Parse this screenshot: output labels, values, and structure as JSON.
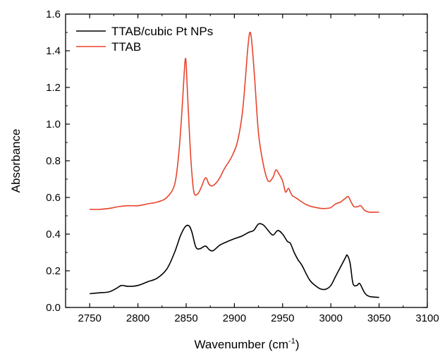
{
  "chart_data": {
    "type": "line",
    "title": "",
    "xlabel": "Wavenumber (cm",
    "xlabel_sup": "-1",
    "xlabel_close": ")",
    "ylabel": "Absorbance",
    "xlim": [
      2725,
      3100
    ],
    "ylim": [
      0.0,
      1.6
    ],
    "xticks": [
      2750,
      2800,
      2850,
      2900,
      2950,
      3000,
      3050,
      3100
    ],
    "xtick_labels": [
      "2750",
      "2800",
      "2850",
      "2900",
      "2950",
      "3000",
      "3050",
      "3100"
    ],
    "yticks": [
      0.0,
      0.2,
      0.4,
      0.6,
      0.8,
      1.0,
      1.2,
      1.4,
      1.6
    ],
    "ytick_labels": [
      "0.0",
      "0.2",
      "0.4",
      "0.6",
      "0.8",
      "1.0",
      "1.2",
      "1.4",
      "1.6"
    ],
    "grid": false,
    "legend_position": "top-left",
    "series": [
      {
        "name": "TTAB/cubic Pt NPs",
        "color": "#000000",
        "x": [
          2750,
          2760,
          2770,
          2778,
          2783,
          2790,
          2800,
          2810,
          2820,
          2830,
          2838,
          2844,
          2849,
          2853,
          2856,
          2860,
          2864,
          2870,
          2874,
          2878,
          2885,
          2893,
          2900,
          2908,
          2915,
          2920,
          2925,
          2930,
          2935,
          2940,
          2945,
          2950,
          2955,
          2958,
          2962,
          2966,
          2970,
          2978,
          2985,
          2990,
          2995,
          3000,
          3005,
          3010,
          3015,
          3017,
          3020,
          3023,
          3027,
          3030,
          3035,
          3040,
          3050
        ],
        "y": [
          0.075,
          0.08,
          0.085,
          0.105,
          0.12,
          0.115,
          0.12,
          0.14,
          0.16,
          0.21,
          0.3,
          0.39,
          0.44,
          0.445,
          0.41,
          0.33,
          0.32,
          0.335,
          0.315,
          0.31,
          0.34,
          0.36,
          0.375,
          0.39,
          0.41,
          0.42,
          0.455,
          0.45,
          0.42,
          0.395,
          0.42,
          0.4,
          0.36,
          0.35,
          0.3,
          0.26,
          0.23,
          0.15,
          0.115,
          0.1,
          0.1,
          0.12,
          0.17,
          0.22,
          0.27,
          0.285,
          0.24,
          0.13,
          0.12,
          0.13,
          0.08,
          0.06,
          0.055
        ]
      },
      {
        "name": "TTAB",
        "color": "#e8442c",
        "x": [
          2750,
          2760,
          2770,
          2780,
          2790,
          2800,
          2810,
          2820,
          2830,
          2838,
          2842,
          2845,
          2848,
          2849,
          2850,
          2852,
          2855,
          2858,
          2862,
          2866,
          2869,
          2871,
          2874,
          2878,
          2884,
          2890,
          2897,
          2903,
          2908,
          2911,
          2914,
          2916,
          2918,
          2921,
          2925,
          2930,
          2935,
          2940,
          2943,
          2946,
          2950,
          2953,
          2956,
          2958,
          2960,
          2963,
          2966,
          2970,
          2975,
          2980,
          2985,
          2990,
          2995,
          3000,
          3005,
          3010,
          3015,
          3018,
          3021,
          3024,
          3028,
          3031,
          3035,
          3040,
          3050
        ],
        "y": [
          0.535,
          0.535,
          0.54,
          0.55,
          0.555,
          0.555,
          0.565,
          0.575,
          0.6,
          0.67,
          0.82,
          1.02,
          1.28,
          1.35,
          1.33,
          1.1,
          0.8,
          0.63,
          0.62,
          0.66,
          0.7,
          0.705,
          0.67,
          0.665,
          0.7,
          0.76,
          0.82,
          0.9,
          1.05,
          1.22,
          1.42,
          1.5,
          1.45,
          1.25,
          0.95,
          0.78,
          0.69,
          0.71,
          0.75,
          0.73,
          0.69,
          0.63,
          0.65,
          0.63,
          0.61,
          0.6,
          0.59,
          0.575,
          0.56,
          0.55,
          0.545,
          0.54,
          0.54,
          0.545,
          0.565,
          0.575,
          0.595,
          0.605,
          0.575,
          0.55,
          0.55,
          0.555,
          0.53,
          0.52,
          0.52
        ]
      }
    ]
  }
}
